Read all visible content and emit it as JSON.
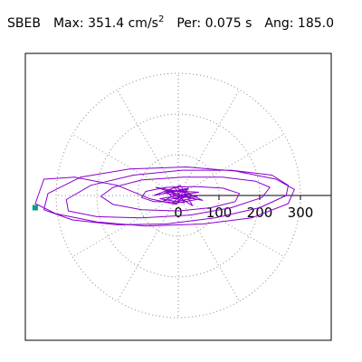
{
  "header": {
    "station": "SBEB",
    "max_label": "Max:",
    "max_value": "351.4 cm/s",
    "max_unit_exp": "2",
    "per_label": "Per:",
    "per_value": "0.075 s",
    "ang_label": "Ang:",
    "ang_value": "185.0"
  },
  "chart_data": {
    "type": "scatter",
    "subtype": "polar-orbit",
    "title": "SBEB  Max: 351.4 cm/s2  Per: 0.075 s  Ang: 185.0",
    "radial_ticks": [
      0,
      100,
      200,
      300
    ],
    "radial_tick_labels": [
      "0",
      "100",
      "200",
      "300"
    ],
    "angular_gridlines_deg": [
      0,
      30,
      60,
      90,
      120,
      150,
      180,
      210,
      240,
      270,
      300,
      330
    ],
    "rings": [
      100,
      200,
      300
    ],
    "grid": true,
    "max_marker": {
      "x": -351.4,
      "y": -30
    },
    "series": [
      {
        "color": "#8800cc",
        "x": [
          -20,
          10,
          -40,
          30,
          -55,
          45,
          -15,
          20,
          -60,
          5,
          35,
          -25,
          50,
          -45,
          15,
          -10,
          60,
          -35,
          25,
          -5,
          -70,
          -150,
          -255,
          -330,
          -351,
          -300,
          -200,
          -80,
          60,
          180,
          270,
          285,
          240,
          140,
          20,
          -120,
          -240,
          -320,
          -330,
          -260,
          -150,
          -30,
          90,
          200,
          265,
          270,
          230,
          130,
          10,
          -110,
          -215,
          -275,
          -270,
          -200,
          -90,
          30,
          130,
          205,
          225,
          190,
          110,
          10,
          -90,
          -160,
          -190,
          -160,
          -90,
          0,
          80,
          140,
          150,
          110,
          40,
          -30,
          -80,
          -90,
          -60,
          -10,
          30,
          50,
          -10,
          -30,
          20,
          -5
        ],
        "y": [
          -5,
          10,
          -15,
          5,
          20,
          -10,
          -20,
          15,
          0,
          25,
          -25,
          12,
          8,
          -8,
          -18,
          22,
          -12,
          6,
          18,
          -22,
          -8,
          25,
          45,
          40,
          -20,
          -45,
          -65,
          -75,
          -70,
          -55,
          -20,
          15,
          40,
          60,
          70,
          65,
          45,
          5,
          -35,
          -60,
          -72,
          -70,
          -55,
          -30,
          0,
          25,
          50,
          62,
          62,
          50,
          25,
          -10,
          -38,
          -52,
          -55,
          -48,
          -30,
          -5,
          20,
          35,
          45,
          45,
          38,
          20,
          -2,
          -22,
          -35,
          -38,
          -30,
          -15,
          5,
          18,
          22,
          20,
          10,
          -5,
          -15,
          -16,
          -8,
          0,
          -8,
          10,
          -2,
          -15
        ]
      }
    ]
  }
}
